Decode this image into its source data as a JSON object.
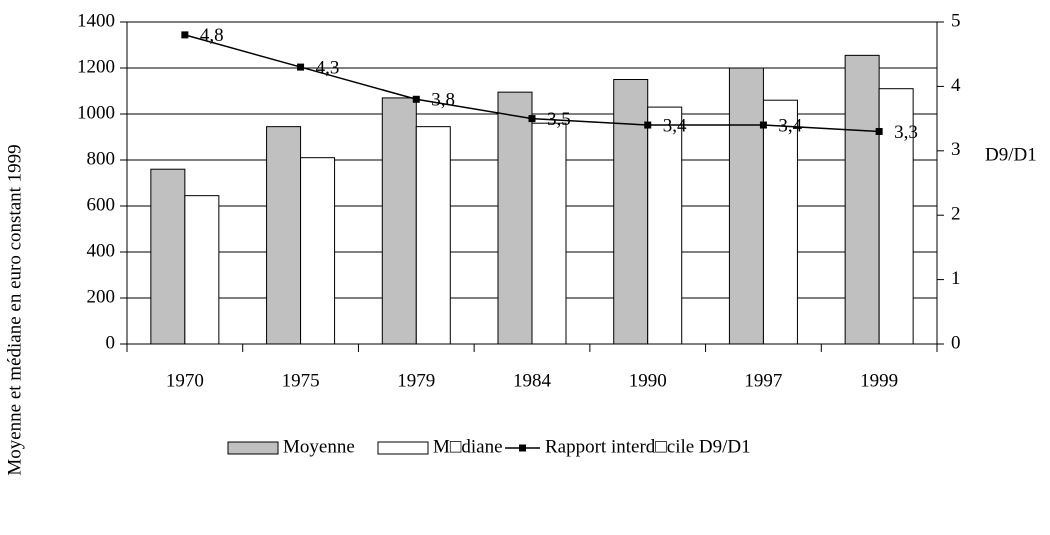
{
  "chart_data": {
    "type": "bar",
    "y_label": "Moyenne et médiane en euro constant 1999",
    "y2_label": "D9/D1",
    "categories": [
      "1970",
      "1975",
      "1979",
      "1984",
      "1990",
      "1997",
      "1999"
    ],
    "series": [
      {
        "name": "Moyenne",
        "type": "bar",
        "color": "#c0c0c0",
        "values": [
          760,
          945,
          1070,
          1095,
          1150,
          1200,
          1255
        ]
      },
      {
        "name": "M□diane",
        "type": "bar",
        "color": "#ffffff",
        "values": [
          645,
          810,
          945,
          960,
          1030,
          1060,
          1110
        ]
      },
      {
        "name": "Rapport interd□cile D9/D1",
        "type": "line",
        "axis": "y2",
        "color": "#000000",
        "values": [
          4.8,
          4.3,
          3.8,
          3.5,
          3.4,
          3.4,
          3.3
        ],
        "value_labels": [
          "4,8",
          "4,3",
          "3,8",
          "3,5",
          "3,4",
          "3,4",
          "3,3"
        ]
      }
    ],
    "ylim": [
      0,
      1400
    ],
    "yticks": [
      0,
      200,
      400,
      600,
      800,
      1000,
      1200,
      1400
    ],
    "y2lim": [
      0,
      5
    ],
    "y2ticks": [
      0,
      1,
      2,
      3,
      4,
      5
    ],
    "grid": true,
    "legend": "bottom"
  }
}
